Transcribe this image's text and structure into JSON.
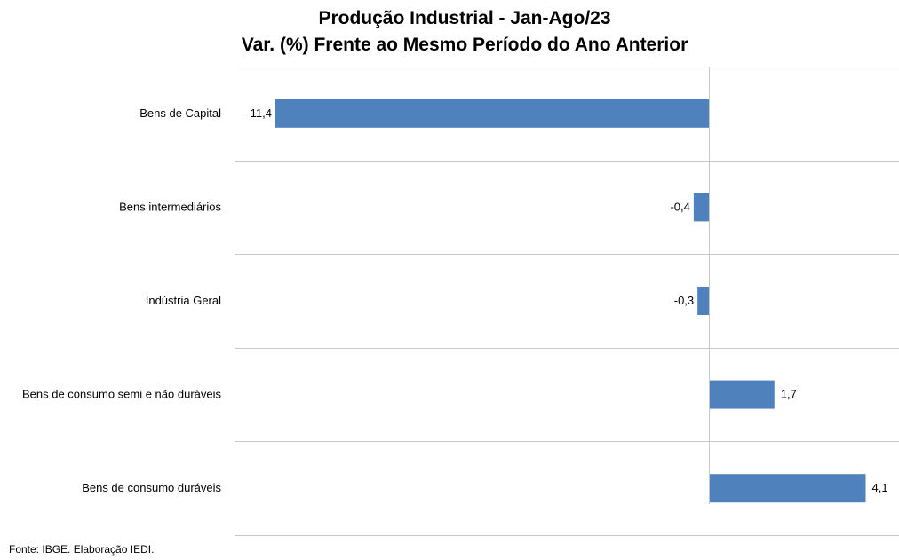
{
  "chart_data": {
    "type": "bar",
    "orientation": "horizontal",
    "title": "Produção Industrial - Jan-Ago/23",
    "subtitle": "Var. (%) Frente ao Mesmo Período do Ano Anterior",
    "categories": [
      "Bens de Capital",
      "Bens intermediários",
      "Indústria Geral",
      "Bens de consumo semi e não duráveis",
      "Bens de consumo duráveis"
    ],
    "values": [
      -11.4,
      -0.4,
      -0.3,
      1.7,
      4.1
    ],
    "value_labels": [
      "-11,4",
      "-0,4",
      "-0,3",
      "1,7",
      "4,1"
    ],
    "xlim": [
      -12.5,
      5
    ],
    "grid": true,
    "bar_color": "#4f81bd"
  },
  "source_text": "Fonte: IBGE. Elaboração IEDI."
}
